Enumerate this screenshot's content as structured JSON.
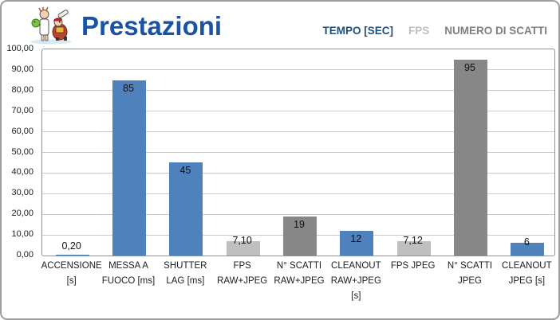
{
  "header": {
    "title": "Prestazioni",
    "title_color": "#1a53a6",
    "logo_name": "mascot-cartoon-logo"
  },
  "legend": {
    "items": [
      {
        "label": "TEMPO [SEC]",
        "color": "#1F4E79"
      },
      {
        "label": "FPS",
        "color": "#BFBFBF"
      },
      {
        "label": "NUMERO DI SCATTI",
        "color": "#7F7F7F"
      }
    ]
  },
  "chart_data": {
    "type": "bar",
    "title": "Prestazioni",
    "xlabel": "",
    "ylabel": "",
    "ylim": [
      0,
      100
    ],
    "ytick_labels": [
      "100,00",
      "90,00",
      "80,00",
      "70,00",
      "60,00",
      "50,00",
      "40,00",
      "30,00",
      "20,00",
      "10,00",
      "0,00"
    ],
    "grid": true,
    "legend_position": "top-right",
    "series": [
      {
        "name": "TEMPO [SEC]",
        "color": "#4F81BD"
      },
      {
        "name": "FPS",
        "color": "#BFBFBF"
      },
      {
        "name": "NUMERO DI SCATTI",
        "color": "#878787"
      }
    ],
    "points": [
      {
        "category": "ACCENSIONE [s]",
        "category_lines": [
          "ACCENSIONE",
          "[s]"
        ],
        "value": 0.2,
        "value_label": "0,20",
        "series": "TEMPO [SEC]"
      },
      {
        "category": "MESSA A FUOCO [ms]",
        "category_lines": [
          "MESSA A",
          "FUOCO [ms]"
        ],
        "value": 85,
        "value_label": "85",
        "series": "TEMPO [SEC]"
      },
      {
        "category": "SHUTTER LAG [ms]",
        "category_lines": [
          "SHUTTER",
          "LAG [ms]"
        ],
        "value": 45,
        "value_label": "45",
        "series": "TEMPO [SEC]"
      },
      {
        "category": "FPS RAW+JPEG",
        "category_lines": [
          "FPS",
          "RAW+JPEG"
        ],
        "value": 7.1,
        "value_label": "7,10",
        "series": "FPS"
      },
      {
        "category": "N° SCATTI RAW+JPEG",
        "category_lines": [
          "N° SCATTI",
          "RAW+JPEG"
        ],
        "value": 19,
        "value_label": "19",
        "series": "NUMERO DI SCATTI"
      },
      {
        "category": "CLEANOUT RAW+JPEG [s]",
        "category_lines": [
          "CLEANOUT",
          "RAW+JPEG",
          "[s]"
        ],
        "value": 12,
        "value_label": "12",
        "series": "TEMPO [SEC]"
      },
      {
        "category": "FPS JPEG",
        "category_lines": [
          "FPS JPEG"
        ],
        "value": 7.12,
        "value_label": "7,12",
        "series": "FPS"
      },
      {
        "category": "N° SCATTI JPEG",
        "category_lines": [
          "N° SCATTI",
          "JPEG"
        ],
        "value": 95,
        "value_label": "95",
        "series": "NUMERO DI SCATTI"
      },
      {
        "category": "CLEANOUT JPEG [s]",
        "category_lines": [
          "CLEANOUT",
          "JPEG [s]"
        ],
        "value": 6,
        "value_label": "6",
        "series": "TEMPO [SEC]"
      }
    ]
  }
}
